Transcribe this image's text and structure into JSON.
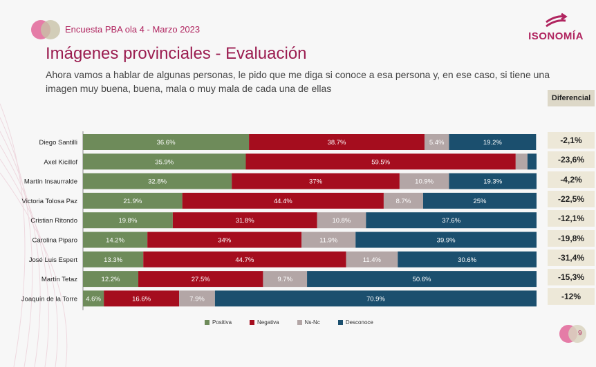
{
  "header": {
    "survey_name": "Encuesta PBA ola 4 - Marzo 2023",
    "brand": "ISONOMÍA"
  },
  "title": "Imágenes provinciales - Evaluación",
  "subtitle": "Ahora vamos a hablar de algunas personas, le pido que me diga si conoce a esa persona y, en ese caso, si tiene una imagen muy buena, buena, mala o muy mala de cada una de ellas",
  "diff_header": "Diferencial",
  "differentials": [
    "-2,1%",
    "-23,6%",
    "-4,2%",
    "-22,5%",
    "-12,1%",
    "-19,8%",
    "-31,4%",
    "-15,3%",
    "-12%"
  ],
  "legend": [
    "Positiva",
    "Negativa",
    "Ns-Nc",
    "Desconoce"
  ],
  "page_number": "9",
  "colors": {
    "positiva": "#6e8b5a",
    "negativa": "#a50d1e",
    "nsnc": "#b3a6a6",
    "desconoce": "#1b4f6e",
    "brand": "#b0245f"
  },
  "chart_data": {
    "type": "bar",
    "orientation": "horizontal",
    "stacked": true,
    "categories": [
      "Diego Santilli",
      "Axel Kicillof",
      "Martín Insaurralde",
      "Victoria Tolosa Paz",
      "Cristian Ritondo",
      "Carolina Piparo",
      "José Luis Espert",
      "Martín Tetaz",
      "Joaquín de la Torre"
    ],
    "series": [
      {
        "name": "Positiva",
        "values": [
          36.6,
          35.9,
          32.8,
          21.9,
          19.8,
          14.2,
          13.3,
          12.2,
          4.6
        ]
      },
      {
        "name": "Negativa",
        "values": [
          38.7,
          59.5,
          37,
          44.4,
          31.8,
          34,
          44.7,
          27.5,
          16.6
        ]
      },
      {
        "name": "Ns-Nc",
        "values": [
          5.4,
          2.6,
          10.9,
          8.7,
          10.8,
          11.9,
          11.4,
          9.7,
          7.9
        ]
      },
      {
        "name": "Desconoce",
        "values": [
          19.2,
          2.0,
          19.3,
          25,
          37.6,
          39.9,
          30.6,
          50.6,
          70.9
        ]
      }
    ],
    "labels": [
      [
        "36.6%",
        "38.7%",
        "5.4%",
        "19.2%"
      ],
      [
        "35.9%",
        "59.5%",
        "",
        ""
      ],
      [
        "32.8%",
        "37%",
        "10.9%",
        "19.3%"
      ],
      [
        "21.9%",
        "44.4%",
        "8.7%",
        "25%"
      ],
      [
        "19.8%",
        "31.8%",
        "10.8%",
        "37.6%"
      ],
      [
        "14.2%",
        "34%",
        "11.9%",
        "39.9%"
      ],
      [
        "13.3%",
        "44.7%",
        "11.4%",
        "30.6%"
      ],
      [
        "12.2%",
        "27.5%",
        "9.7%",
        "50.6%"
      ],
      [
        "4.6%",
        "16.6%",
        "7.9%",
        "70.9%"
      ]
    ],
    "xlim": [
      0,
      100
    ],
    "legend_position": "bottom"
  }
}
